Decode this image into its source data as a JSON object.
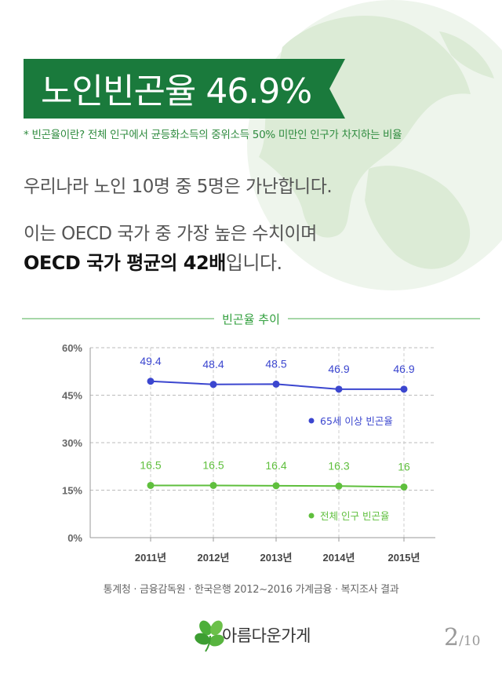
{
  "header": {
    "title": "노인빈곤율 46.9%",
    "definition": "* 빈곤율이란? 전체 인구에서 균등화소득의 중위소득 50% 미만인 인구가 차지하는 비율"
  },
  "body_text": {
    "line1": "우리나라 노인 10명 중 5명은 가난합니다.",
    "line2": "이는 OECD 국가 중 가장 높은 수치이며",
    "line3_emphasis": "OECD 국가 평균의 42배",
    "line3_rest": "입니다."
  },
  "chart_title": "빈곤율 추이",
  "chart_data": {
    "type": "line",
    "categories": [
      "2011년",
      "2012년",
      "2013년",
      "2014년",
      "2015년"
    ],
    "series": [
      {
        "name": "65세 이상 빈곤율",
        "values": [
          49.4,
          48.4,
          48.5,
          46.9,
          46.9
        ],
        "labels": [
          "49.4",
          "48.4",
          "48.5",
          "46.9",
          "46.9"
        ],
        "color": "#3b46cf"
      },
      {
        "name": "전체 인구 빈곤율",
        "values": [
          16.5,
          16.5,
          16.4,
          16.3,
          16
        ],
        "labels": [
          "16.5",
          "16.5",
          "16.4",
          "16.3",
          "16"
        ],
        "color": "#5fbf3d"
      }
    ],
    "yticks": [
      "0%",
      "15%",
      "30%",
      "45%",
      "60%"
    ],
    "ylim": [
      0,
      60
    ],
    "grid": true
  },
  "source": "통계청 · 금융감독원 · 한국은행 2012~2016 가계금융 · 복지조사 결과",
  "brand": {
    "name": "아름다운가게",
    "icon": "clover-leaf-icon"
  },
  "pagination": {
    "current": "2",
    "total": "/10"
  },
  "colors": {
    "banner": "#1a7a3c",
    "accent_green": "#2e9e3a",
    "globe": "#dcebd6"
  }
}
